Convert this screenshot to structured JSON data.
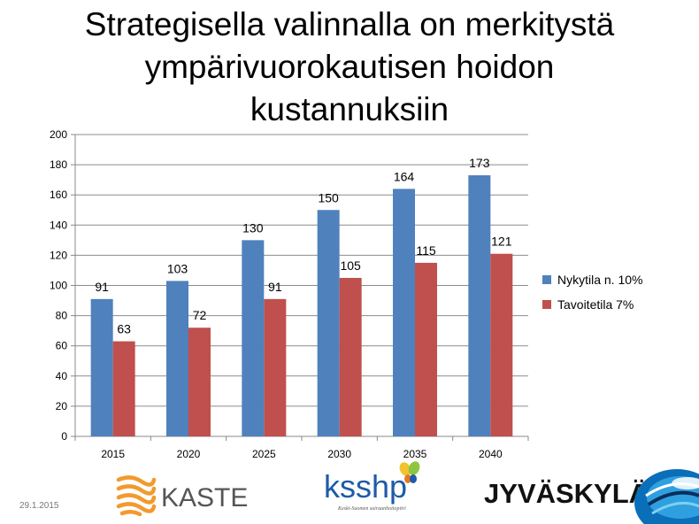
{
  "title_lines": [
    "Strategisella valinnalla on merkitystä",
    "ympärivuorokautisen hoidon",
    "kustannuksiin"
  ],
  "footer": {
    "date": "29.1.2015"
  },
  "logos": {
    "kaste": "KASTE",
    "ksshp": "ksshp",
    "ksshp_sub": "Keski-Suomen sairaanhoitopiiri",
    "jyvaskyla": "JYVÄSKYLÄ"
  },
  "colors": {
    "series1": "#4F81BD",
    "series2": "#C0504D",
    "kaste_orange": "#F29A2E",
    "ksshp_blue": "#1E5BA8"
  },
  "chart_data": {
    "type": "bar",
    "title": "",
    "xlabel": "",
    "ylabel": "",
    "categories": [
      "2015",
      "2020",
      "2025",
      "2030",
      "2035",
      "2040"
    ],
    "series": [
      {
        "name": "Nykytila n. 10%",
        "values": [
          91,
          103,
          130,
          150,
          164,
          173
        ]
      },
      {
        "name": "Tavoitetila 7%",
        "values": [
          63,
          72,
          91,
          105,
          115,
          121
        ]
      }
    ],
    "ylim": [
      0,
      200
    ],
    "yticks": [
      0,
      20,
      40,
      60,
      80,
      100,
      120,
      140,
      160,
      180,
      200
    ],
    "grid": true,
    "legend": "right",
    "data_labels": true
  }
}
